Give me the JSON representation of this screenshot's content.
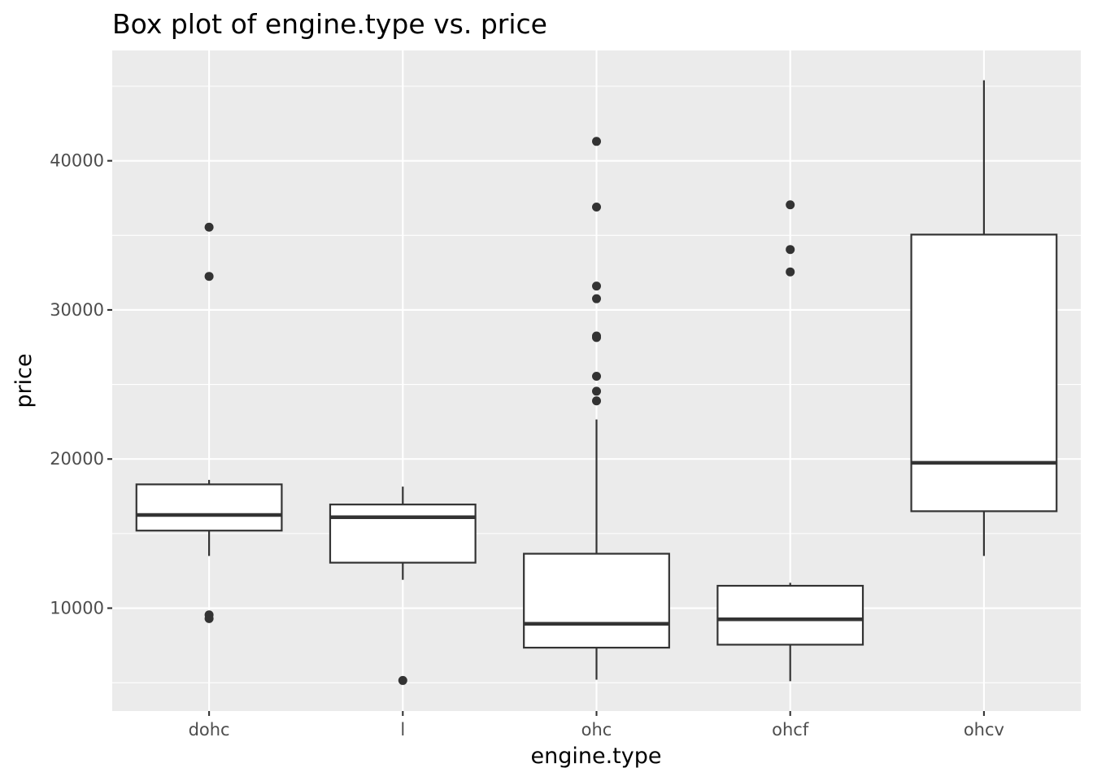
{
  "chart_data": {
    "type": "boxplot",
    "title": "Box plot of engine.type vs. price",
    "xlabel": "engine.type",
    "ylabel": "price",
    "categories": [
      "dohc",
      "l",
      "ohc",
      "ohcf",
      "ohcv"
    ],
    "ylim": [
      3100,
      47400
    ],
    "yticks": [
      10000,
      20000,
      30000,
      40000
    ],
    "ytick_labels": [
      "10000",
      "20000",
      "30000",
      "40000"
    ],
    "grid": true,
    "boxes": [
      {
        "category": "dohc",
        "whisker_low": 13500,
        "q1": 15200,
        "median": 16250,
        "q3": 18300,
        "whisker_high": 18600,
        "outliers": [
          35550,
          32250,
          9550,
          9300
        ]
      },
      {
        "category": "l",
        "whisker_low": 11900,
        "q1": 13050,
        "median": 16100,
        "q3": 16950,
        "whisker_high": 18150,
        "outliers": [
          5150
        ]
      },
      {
        "category": "ohc",
        "whisker_low": 5200,
        "q1": 7350,
        "median": 8950,
        "q3": 13650,
        "whisker_high": 22650,
        "outliers": [
          41300,
          36900,
          31600,
          30750,
          28250,
          28150,
          25550,
          24550,
          23900
        ]
      },
      {
        "category": "ohcf",
        "whisker_low": 5100,
        "q1": 7550,
        "median": 9250,
        "q3": 11500,
        "whisker_high": 11700,
        "outliers": [
          37050,
          34050,
          32550
        ]
      },
      {
        "category": "ohcv",
        "whisker_low": 13500,
        "q1": 16500,
        "median": 19750,
        "q3": 35050,
        "whisker_high": 45400,
        "outliers": []
      }
    ]
  }
}
